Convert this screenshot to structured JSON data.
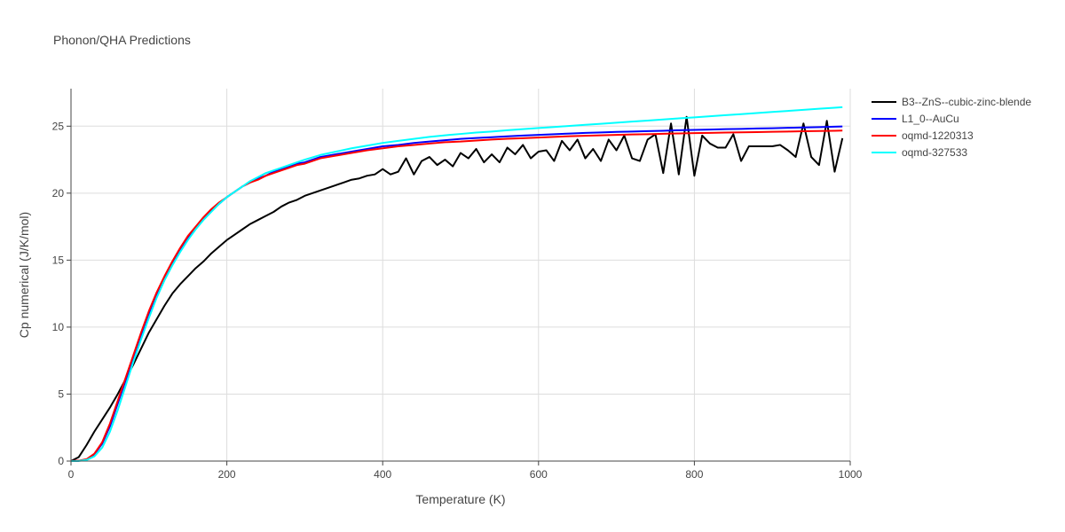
{
  "chart_data": {
    "type": "line",
    "title": "Phonon/QHA Predictions",
    "xlabel": "Temperature (K)",
    "ylabel": "Cp numerical (J/K/mol)",
    "xlim": [
      0,
      1000
    ],
    "ylim": [
      0,
      27.8
    ],
    "xticks": [
      0,
      200,
      400,
      600,
      800,
      1000
    ],
    "yticks": [
      0,
      5,
      10,
      15,
      20,
      25
    ],
    "grid": true,
    "legend_position": "top-right",
    "series": [
      {
        "name": "B3--ZnS--cubic-zinc-blende",
        "color": "#000000",
        "x": [
          0,
          10,
          20,
          30,
          40,
          50,
          60,
          70,
          80,
          90,
          100,
          110,
          120,
          130,
          140,
          150,
          160,
          170,
          180,
          190,
          200,
          210,
          220,
          230,
          240,
          250,
          260,
          270,
          280,
          290,
          300,
          310,
          320,
          330,
          340,
          350,
          360,
          370,
          380,
          390,
          400,
          410,
          420,
          430,
          440,
          450,
          460,
          470,
          480,
          490,
          500,
          510,
          520,
          530,
          540,
          550,
          560,
          570,
          580,
          590,
          600,
          610,
          620,
          630,
          640,
          650,
          660,
          670,
          680,
          690,
          700,
          710,
          720,
          730,
          740,
          750,
          760,
          770,
          780,
          790,
          800,
          810,
          820,
          830,
          840,
          850,
          860,
          870,
          880,
          890,
          900,
          910,
          920,
          930,
          940,
          950,
          960,
          970,
          980,
          990
        ],
        "y": [
          0,
          0.3,
          1.2,
          2.2,
          3.1,
          4.0,
          5.0,
          6.1,
          7.2,
          8.4,
          9.6,
          10.6,
          11.6,
          12.5,
          13.2,
          13.8,
          14.4,
          14.9,
          15.5,
          16.0,
          16.5,
          16.9,
          17.3,
          17.7,
          18.0,
          18.3,
          18.6,
          19.0,
          19.3,
          19.5,
          19.8,
          20.0,
          20.2,
          20.4,
          20.6,
          20.8,
          21.0,
          21.1,
          21.3,
          21.4,
          21.8,
          21.4,
          21.6,
          22.6,
          21.4,
          22.4,
          22.7,
          22.1,
          22.5,
          22.0,
          23.0,
          22.6,
          23.3,
          22.3,
          22.9,
          22.3,
          23.4,
          22.9,
          23.6,
          22.6,
          23.1,
          23.2,
          22.4,
          23.9,
          23.2,
          24.0,
          22.6,
          23.3,
          22.4,
          24.0,
          23.2,
          24.3,
          22.6,
          22.4,
          24.0,
          24.4,
          21.5,
          25.2,
          21.4,
          25.7,
          21.3,
          24.3,
          23.7,
          23.4,
          23.4,
          24.4,
          22.4,
          23.5,
          23.5,
          23.5,
          23.5,
          23.6,
          23.2,
          22.7,
          25.2,
          22.7,
          22.1,
          25.4,
          21.6,
          24.1
        ]
      },
      {
        "name": "L1_0--AuCu",
        "color": "#0000ff",
        "x": [
          0,
          10,
          20,
          30,
          40,
          50,
          60,
          70,
          80,
          90,
          100,
          110,
          120,
          130,
          140,
          150,
          160,
          170,
          180,
          190,
          200,
          210,
          220,
          230,
          240,
          250,
          260,
          270,
          280,
          290,
          300,
          320,
          340,
          360,
          380,
          400,
          420,
          440,
          460,
          480,
          500,
          520,
          540,
          560,
          580,
          600,
          620,
          640,
          660,
          680,
          700,
          720,
          740,
          760,
          780,
          800,
          820,
          840,
          860,
          880,
          900,
          920,
          940,
          960,
          980,
          990
        ],
        "y": [
          0,
          0.02,
          0.12,
          0.5,
          1.3,
          2.6,
          4.3,
          6.0,
          7.7,
          9.4,
          11.0,
          12.4,
          13.7,
          14.8,
          15.8,
          16.7,
          17.4,
          18.1,
          18.7,
          19.2,
          19.7,
          20.1,
          20.5,
          20.8,
          21.1,
          21.3,
          21.6,
          21.8,
          22.0,
          22.2,
          22.3,
          22.7,
          22.9,
          23.1,
          23.3,
          23.5,
          23.6,
          23.75,
          23.85,
          23.95,
          24.05,
          24.12,
          24.18,
          24.24,
          24.3,
          24.35,
          24.4,
          24.45,
          24.5,
          24.53,
          24.57,
          24.6,
          24.63,
          24.66,
          24.7,
          24.72,
          24.75,
          24.78,
          24.8,
          24.83,
          24.85,
          24.88,
          24.9,
          24.93,
          24.96,
          24.98
        ]
      },
      {
        "name": "oqmd-1220313",
        "color": "#ff0000",
        "x": [
          0,
          10,
          20,
          30,
          40,
          50,
          60,
          70,
          80,
          90,
          100,
          110,
          120,
          130,
          140,
          150,
          160,
          170,
          180,
          190,
          200,
          210,
          220,
          230,
          240,
          250,
          260,
          270,
          280,
          290,
          300,
          320,
          340,
          360,
          380,
          400,
          420,
          440,
          460,
          480,
          500,
          520,
          540,
          560,
          580,
          600,
          620,
          640,
          660,
          680,
          700,
          720,
          740,
          760,
          780,
          800,
          820,
          840,
          860,
          880,
          900,
          920,
          940,
          960,
          980,
          990
        ],
        "y": [
          0,
          0.03,
          0.14,
          0.55,
          1.4,
          2.8,
          4.5,
          6.2,
          7.9,
          9.6,
          11.2,
          12.6,
          13.8,
          14.9,
          15.9,
          16.8,
          17.5,
          18.2,
          18.8,
          19.3,
          19.7,
          20.1,
          20.5,
          20.8,
          21.0,
          21.3,
          21.5,
          21.7,
          21.9,
          22.1,
          22.2,
          22.6,
          22.8,
          23.0,
          23.2,
          23.35,
          23.5,
          23.6,
          23.7,
          23.8,
          23.85,
          23.93,
          24.0,
          24.06,
          24.1,
          24.15,
          24.2,
          24.25,
          24.28,
          24.32,
          24.35,
          24.38,
          24.4,
          24.43,
          24.46,
          24.48,
          24.5,
          24.52,
          24.54,
          24.56,
          24.58,
          24.6,
          24.62,
          24.64,
          24.66,
          24.67
        ]
      },
      {
        "name": "oqmd-327533",
        "color": "#00ffff",
        "x": [
          0,
          10,
          20,
          30,
          40,
          50,
          60,
          70,
          80,
          90,
          100,
          110,
          120,
          130,
          140,
          150,
          160,
          170,
          180,
          190,
          200,
          210,
          220,
          230,
          240,
          250,
          260,
          270,
          280,
          290,
          300,
          320,
          340,
          360,
          380,
          400,
          420,
          440,
          460,
          480,
          500,
          520,
          540,
          560,
          580,
          600,
          620,
          640,
          660,
          680,
          700,
          720,
          740,
          760,
          780,
          800,
          820,
          840,
          860,
          880,
          900,
          920,
          940,
          960,
          980,
          990
        ],
        "y": [
          0,
          0.01,
          0.08,
          0.35,
          1.0,
          2.2,
          3.8,
          5.6,
          7.4,
          9.1,
          10.7,
          12.2,
          13.5,
          14.6,
          15.6,
          16.5,
          17.3,
          18.0,
          18.6,
          19.2,
          19.7,
          20.1,
          20.5,
          20.9,
          21.2,
          21.5,
          21.7,
          21.9,
          22.1,
          22.3,
          22.5,
          22.85,
          23.1,
          23.35,
          23.55,
          23.75,
          23.9,
          24.05,
          24.2,
          24.32,
          24.42,
          24.52,
          24.6,
          24.7,
          24.78,
          24.86,
          24.94,
          25.02,
          25.1,
          25.18,
          25.26,
          25.34,
          25.42,
          25.5,
          25.58,
          25.66,
          25.74,
          25.82,
          25.9,
          25.98,
          26.06,
          26.14,
          26.22,
          26.3,
          26.38,
          26.42
        ]
      }
    ]
  }
}
